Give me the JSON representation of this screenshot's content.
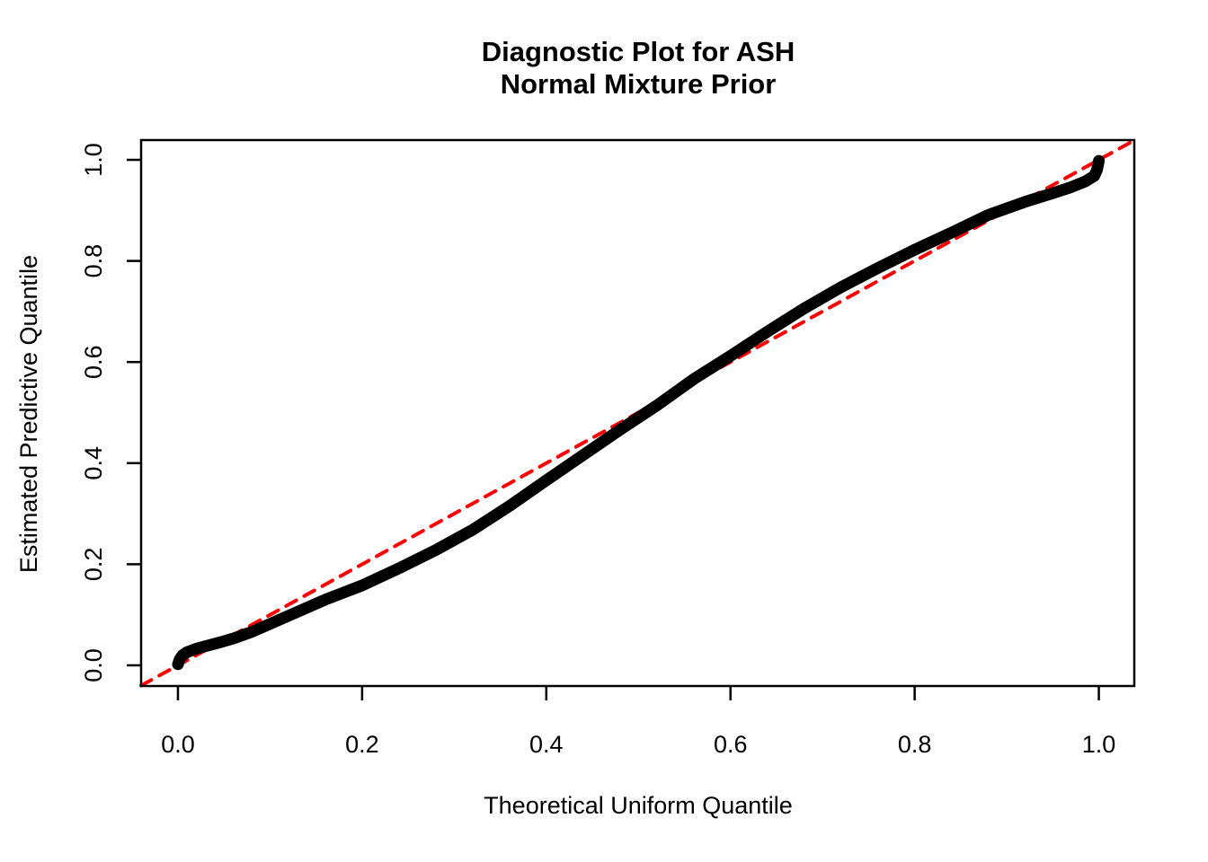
{
  "figure": {
    "background_color": "#ffffff",
    "foreground_color": "#000000",
    "accent_color": "#ff0000"
  },
  "chart_data": {
    "type": "line",
    "title_lines": [
      "Diagnostic Plot for ASH",
      "Normal Mixture Prior"
    ],
    "title": "Diagnostic Plot for ASH\nNormal Mixture Prior",
    "xlabel": "Theoretical Uniform Quantile",
    "ylabel": "Estimated Predictive Quantile",
    "axes": {
      "xlim": [
        -0.04,
        1.0385
      ],
      "ylim": [
        -0.0409,
        1.0391
      ],
      "x_ticks": [
        0.0,
        0.2,
        0.4,
        0.6,
        0.8,
        1.0
      ],
      "y_ticks": [
        0.0,
        0.2,
        0.4,
        0.6,
        0.8,
        1.0
      ],
      "x_tick_labels": [
        "0.0",
        "0.2",
        "0.4",
        "0.6",
        "0.8",
        "1.0"
      ],
      "y_tick_labels": [
        "0.0",
        "0.2",
        "0.4",
        "0.6",
        "0.8",
        "1.0"
      ],
      "grid": false,
      "box": "plain"
    },
    "legend": null,
    "series": [
      {
        "name": "reference-diagonal-y-equals-x",
        "label": "y = x reference line",
        "color": "#ff0000",
        "line_width": 4,
        "dash": [
          13,
          10
        ],
        "points": [
          [
            -0.04,
            -0.04
          ],
          [
            1.0385,
            1.0385
          ]
        ]
      },
      {
        "name": "estimated-vs-theoretical-quantile-curve",
        "label": "Estimated predictive quantiles vs uniform quantiles",
        "color": "#000000",
        "line_width": 13,
        "dash": null,
        "points": [
          [
            0.0,
            0.002
          ],
          [
            0.002,
            0.012
          ],
          [
            0.005,
            0.02
          ],
          [
            0.01,
            0.026
          ],
          [
            0.02,
            0.033
          ],
          [
            0.03,
            0.038
          ],
          [
            0.045,
            0.045
          ],
          [
            0.06,
            0.053
          ],
          [
            0.08,
            0.066
          ],
          [
            0.1,
            0.082
          ],
          [
            0.13,
            0.106
          ],
          [
            0.16,
            0.13
          ],
          [
            0.2,
            0.158
          ],
          [
            0.24,
            0.192
          ],
          [
            0.28,
            0.228
          ],
          [
            0.32,
            0.268
          ],
          [
            0.36,
            0.315
          ],
          [
            0.4,
            0.366
          ],
          [
            0.44,
            0.416
          ],
          [
            0.48,
            0.466
          ],
          [
            0.52,
            0.514
          ],
          [
            0.56,
            0.566
          ],
          [
            0.6,
            0.612
          ],
          [
            0.64,
            0.66
          ],
          [
            0.68,
            0.706
          ],
          [
            0.72,
            0.748
          ],
          [
            0.76,
            0.786
          ],
          [
            0.8,
            0.822
          ],
          [
            0.84,
            0.856
          ],
          [
            0.88,
            0.891
          ],
          [
            0.92,
            0.917
          ],
          [
            0.95,
            0.934
          ],
          [
            0.97,
            0.946
          ],
          [
            0.985,
            0.957
          ],
          [
            0.995,
            0.968
          ],
          [
            0.998,
            0.98
          ],
          [
            1.0,
            0.998
          ]
        ]
      }
    ]
  }
}
